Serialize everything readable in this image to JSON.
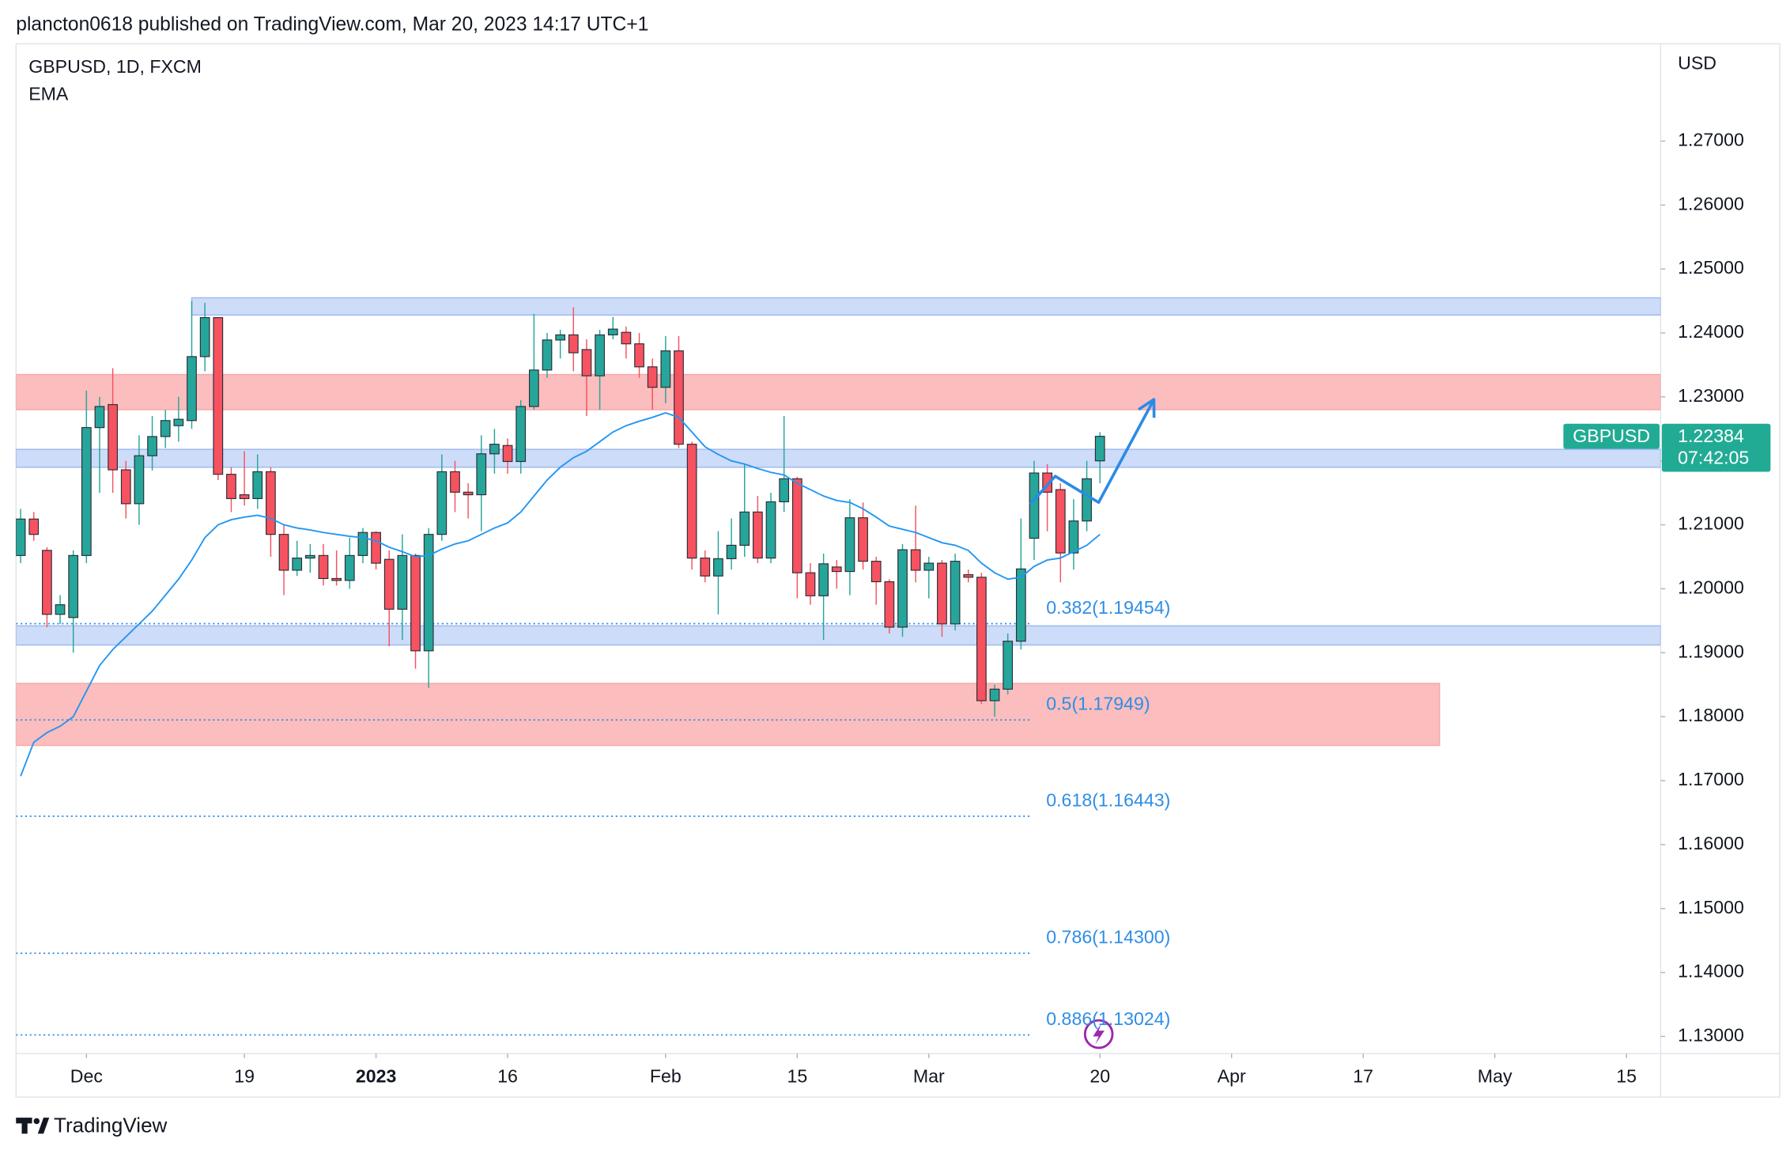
{
  "chart_data": {
    "type": "candlestick",
    "header": "plancton0618 published on TradingView.com, Mar 20, 2023 14:17 UTC+1",
    "title": "GBPUSD, 1D, FXCM",
    "y_axis_label": "USD",
    "brand": "TradingView",
    "xlim": [
      -0.35,
      124.6
    ],
    "ylim": [
      1.12732,
      1.28522
    ],
    "xticks": [
      {
        "value": 5,
        "label": "Dec"
      },
      {
        "value": 17,
        "label": "19"
      },
      {
        "value": 27,
        "label": "2023"
      },
      {
        "value": 37,
        "label": "16"
      },
      {
        "value": 49,
        "label": "Feb"
      },
      {
        "value": 59,
        "label": "15"
      },
      {
        "value": 69,
        "label": "Mar"
      },
      {
        "value": 82,
        "label": "20"
      },
      {
        "value": 92,
        "label": "Apr"
      },
      {
        "value": 102,
        "label": "17"
      },
      {
        "value": 112,
        "label": "May"
      },
      {
        "value": 122,
        "label": "15"
      }
    ],
    "yticks": [
      {
        "value": 1.13,
        "label": "1.13000"
      },
      {
        "value": 1.14,
        "label": "1.14000"
      },
      {
        "value": 1.15,
        "label": "1.15000"
      },
      {
        "value": 1.16,
        "label": "1.16000"
      },
      {
        "value": 1.17,
        "label": "1.17000"
      },
      {
        "value": 1.18,
        "label": "1.18000"
      },
      {
        "value": 1.19,
        "label": "1.19000"
      },
      {
        "value": 1.2,
        "label": "1.20000"
      },
      {
        "value": 1.21,
        "label": "1.21000"
      },
      {
        "value": 1.22,
        "label": "1.22000"
      },
      {
        "value": 1.23,
        "label": "1.23000"
      },
      {
        "value": 1.24,
        "label": "1.24000"
      },
      {
        "value": 1.25,
        "label": "1.25000"
      },
      {
        "value": 1.26,
        "label": "1.26000"
      },
      {
        "value": 1.27,
        "label": "1.27000"
      }
    ],
    "series": [
      {
        "name": "GBPUSD",
        "up_color": "#26a69a",
        "down_color": "#f7525f",
        "open": [
          1.2052,
          1.2109,
          1.206,
          1.196,
          1.1955,
          1.2052,
          1.2252,
          1.2288,
          1.2186,
          1.2133,
          1.2208,
          1.2238,
          1.2255,
          1.2263,
          1.2363,
          1.2424,
          1.2179,
          1.2147,
          1.2141,
          1.2183,
          1.2085,
          1.2029,
          1.2048,
          1.2052,
          1.2016,
          1.2013,
          1.2052,
          1.2088,
          1.2046,
          1.1968,
          1.2052,
          1.1903,
          1.2085,
          1.2183,
          1.2151,
          1.2147,
          1.2211,
          1.2224,
          1.2199,
          1.2285,
          1.2342,
          1.2389,
          1.2397,
          1.2374,
          1.2333,
          1.2397,
          1.2401,
          1.2383,
          1.2347,
          1.2315,
          1.2372,
          1.2226,
          1.2048,
          1.202,
          1.2047,
          1.2068,
          1.212,
          1.2048,
          1.2136,
          1.2172,
          1.2025,
          1.1989,
          1.2034,
          1.2027,
          1.2111,
          1.2043,
          1.2011,
          1.194,
          1.2061,
          1.2029,
          1.204,
          1.1945,
          1.2022,
          1.2018,
          1.1825,
          1.1843,
          1.1918,
          1.2079,
          1.2181,
          1.2155,
          1.2056,
          1.2106,
          1.22
        ],
        "high": [
          1.2125,
          1.212,
          1.2065,
          1.199,
          1.206,
          1.231,
          1.23,
          1.2345,
          1.22,
          1.224,
          1.227,
          1.228,
          1.23,
          1.245,
          1.2447,
          1.2424,
          1.219,
          1.2215,
          1.221,
          1.219,
          1.21,
          1.2075,
          1.207,
          1.207,
          1.206,
          1.208,
          1.2095,
          1.209,
          1.206,
          1.2085,
          1.2055,
          1.2095,
          1.221,
          1.22,
          1.2165,
          1.224,
          1.225,
          1.2235,
          1.2295,
          1.243,
          1.24,
          1.2405,
          1.244,
          1.239,
          1.2405,
          1.2425,
          1.241,
          1.24,
          1.236,
          1.2395,
          1.2395,
          1.223,
          1.206,
          1.209,
          1.211,
          1.2195,
          1.2145,
          1.215,
          1.227,
          1.2175,
          1.204,
          1.2055,
          1.2045,
          1.214,
          1.2135,
          1.205,
          1.2015,
          1.207,
          1.213,
          1.205,
          1.2045,
          1.2055,
          1.203,
          1.2025,
          1.185,
          1.193,
          1.211,
          1.22,
          1.2195,
          1.2165,
          1.214,
          1.22,
          1.2245
        ],
        "low": [
          1.204,
          1.2075,
          1.194,
          1.1945,
          1.19,
          1.204,
          1.215,
          1.215,
          1.211,
          1.21,
          1.2185,
          1.222,
          1.223,
          1.225,
          1.234,
          1.217,
          1.212,
          1.213,
          1.2125,
          1.205,
          1.199,
          1.202,
          1.2025,
          1.2005,
          1.2005,
          1.2,
          1.204,
          1.203,
          1.191,
          1.192,
          1.1875,
          1.1845,
          1.2075,
          1.212,
          1.211,
          1.209,
          1.218,
          1.218,
          1.218,
          1.228,
          1.233,
          1.236,
          1.234,
          1.227,
          1.228,
          1.239,
          1.236,
          1.233,
          1.228,
          1.229,
          1.222,
          1.203,
          1.201,
          1.196,
          1.203,
          1.205,
          1.204,
          1.204,
          1.212,
          1.1985,
          1.1975,
          1.192,
          1.2,
          1.199,
          1.203,
          1.1975,
          1.193,
          1.1925,
          1.201,
          1.1985,
          1.1925,
          1.1935,
          1.201,
          1.182,
          1.18,
          1.1835,
          1.1905,
          1.2045,
          1.209,
          1.201,
          1.203,
          1.209,
          1.2165
        ],
        "close": [
          1.2109,
          1.2085,
          1.196,
          1.1975,
          1.2052,
          1.2252,
          1.2285,
          1.2186,
          1.2133,
          1.2208,
          1.2238,
          1.2263,
          1.2265,
          1.2363,
          1.2424,
          1.2179,
          1.2141,
          1.2141,
          1.2183,
          1.2085,
          1.2029,
          1.2048,
          1.2052,
          1.2016,
          1.2013,
          1.2052,
          1.2088,
          1.204,
          1.1968,
          1.2052,
          1.1903,
          1.2085,
          1.2183,
          1.2151,
          1.2147,
          1.2211,
          1.2226,
          1.2199,
          1.2285,
          1.2342,
          1.2389,
          1.2397,
          1.2369,
          1.2333,
          1.2397,
          1.2406,
          1.2383,
          1.2347,
          1.2315,
          1.2372,
          1.2226,
          1.2048,
          1.202,
          1.2047,
          1.2068,
          1.212,
          1.2048,
          1.2136,
          1.2172,
          1.2025,
          1.1989,
          1.2039,
          1.2027,
          1.2111,
          1.2043,
          1.2011,
          1.194,
          1.2061,
          1.2029,
          1.204,
          1.1945,
          1.2043,
          1.2018,
          1.1825,
          1.1843,
          1.1918,
          1.2031,
          1.2181,
          1.2151,
          1.2056,
          1.2106,
          1.2172,
          1.22384
        ]
      },
      {
        "name": "EMA",
        "color": "#2196f3",
        "values": [
          1.1707,
          1.176,
          1.1775,
          1.1785,
          1.18,
          1.184,
          1.188,
          1.1905,
          1.1925,
          1.1945,
          1.1965,
          1.199,
          1.2015,
          1.2045,
          1.208,
          1.21,
          1.2108,
          1.2112,
          1.2115,
          1.211,
          1.21,
          1.2095,
          1.2092,
          1.2088,
          1.2085,
          1.2082,
          1.208,
          1.2075,
          1.2065,
          1.2058,
          1.205,
          1.2052,
          1.2062,
          1.207,
          1.2075,
          1.2085,
          1.2095,
          1.2103,
          1.212,
          1.2145,
          1.217,
          1.219,
          1.2205,
          1.2215,
          1.223,
          1.2245,
          1.2255,
          1.2262,
          1.2268,
          1.2275,
          1.2268,
          1.2245,
          1.2222,
          1.221,
          1.22,
          1.2195,
          1.2188,
          1.2182,
          1.2178,
          1.2165,
          1.2155,
          1.2145,
          1.2138,
          1.2135,
          1.2125,
          1.2112,
          1.2098,
          1.2093,
          1.2088,
          1.208,
          1.2072,
          1.2068,
          1.206,
          1.204,
          1.2025,
          1.2015,
          1.2018,
          1.2035,
          1.2045,
          1.2048,
          1.2058,
          1.2068,
          1.2085
        ]
      }
    ],
    "zones": [
      {
        "low": 1.2428,
        "high": 1.2455,
        "start": 13,
        "end": 124.6,
        "color": "#cddcf8",
        "border": "#9dbaf0"
      },
      {
        "low": 1.228,
        "high": 1.2335,
        "start": -0.35,
        "end": 124.6,
        "color": "#fbbdbd",
        "border": "#f8a7a7"
      },
      {
        "low": 1.219,
        "high": 1.2218,
        "start": -0.35,
        "end": 124.6,
        "color": "#cddcf8",
        "border": "#9dbaf0"
      },
      {
        "low": 1.1912,
        "high": 1.1942,
        "start": -0.35,
        "end": 124.6,
        "color": "#cddcf8",
        "border": "#9dbaf0"
      },
      {
        "low": 1.1755,
        "high": 1.1852,
        "start": -0.35,
        "end": 107.8,
        "color": "#fbbdbd",
        "border": "#f8a7a7"
      }
    ],
    "fib_levels": [
      {
        "price": 1.19454,
        "label": "0.382(1.19454)"
      },
      {
        "price": 1.17949,
        "label": "0.5(1.17949)"
      },
      {
        "price": 1.16443,
        "label": "0.618(1.16443)"
      },
      {
        "price": 1.143,
        "label": "0.786(1.14300)"
      },
      {
        "price": 1.13024,
        "label": "0.886(1.13024)"
      }
    ],
    "fib_end": 76.7,
    "fib_color": "#2f8ee5",
    "arrow": {
      "x": [
        76.7,
        78.6,
        81.9,
        86.1
      ],
      "y": [
        1.2132,
        1.2176,
        1.2135,
        1.2296
      ],
      "color": "#2a8be6"
    },
    "price_tag": {
      "value": 1.22384,
      "label": "1.22384",
      "countdown": "07:42:05",
      "color": "#22ab94"
    }
  }
}
